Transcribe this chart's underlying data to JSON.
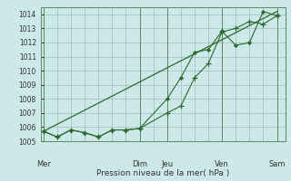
{
  "xlabel": "Pression niveau de la mer( hPa )",
  "ylim": [
    1005,
    1014.5
  ],
  "yticks": [
    1005,
    1006,
    1007,
    1008,
    1009,
    1010,
    1011,
    1012,
    1013,
    1014
  ],
  "background_color": "#cde8e8",
  "grid_color": "#9dbfbf",
  "line_color": "#2d6a2d",
  "day_labels": [
    "Mer",
    "Dim",
    "Jeu",
    "Ven",
    "Sam"
  ],
  "day_positions": [
    0.0,
    3.5,
    4.5,
    6.5,
    8.5
  ],
  "series1_x": [
    0.0,
    0.5,
    1.0,
    1.5,
    2.0,
    2.5,
    3.0,
    3.5,
    4.5,
    5.0,
    5.5,
    6.0,
    6.5,
    7.0,
    7.5,
    8.0,
    8.5
  ],
  "series1_y": [
    1005.7,
    1005.3,
    1005.8,
    1005.6,
    1005.3,
    1005.8,
    1005.8,
    1005.9,
    1007.0,
    1007.5,
    1009.5,
    1010.5,
    1012.75,
    1013.0,
    1013.5,
    1013.3,
    1013.9
  ],
  "series2_x": [
    0.0,
    0.5,
    1.0,
    1.5,
    2.0,
    2.5,
    3.0,
    3.5,
    4.5,
    5.0,
    5.5,
    6.0,
    6.5,
    7.0,
    7.5,
    8.0,
    8.5
  ],
  "series2_y": [
    1005.7,
    1005.3,
    1005.8,
    1005.6,
    1005.3,
    1005.8,
    1005.8,
    1005.9,
    1008.0,
    1009.5,
    1011.3,
    1011.5,
    1012.8,
    1011.8,
    1012.0,
    1014.2,
    1013.9
  ],
  "series3_x": [
    0.0,
    8.5
  ],
  "series3_y": [
    1005.7,
    1014.2
  ],
  "xlim": [
    -0.1,
    8.8
  ]
}
